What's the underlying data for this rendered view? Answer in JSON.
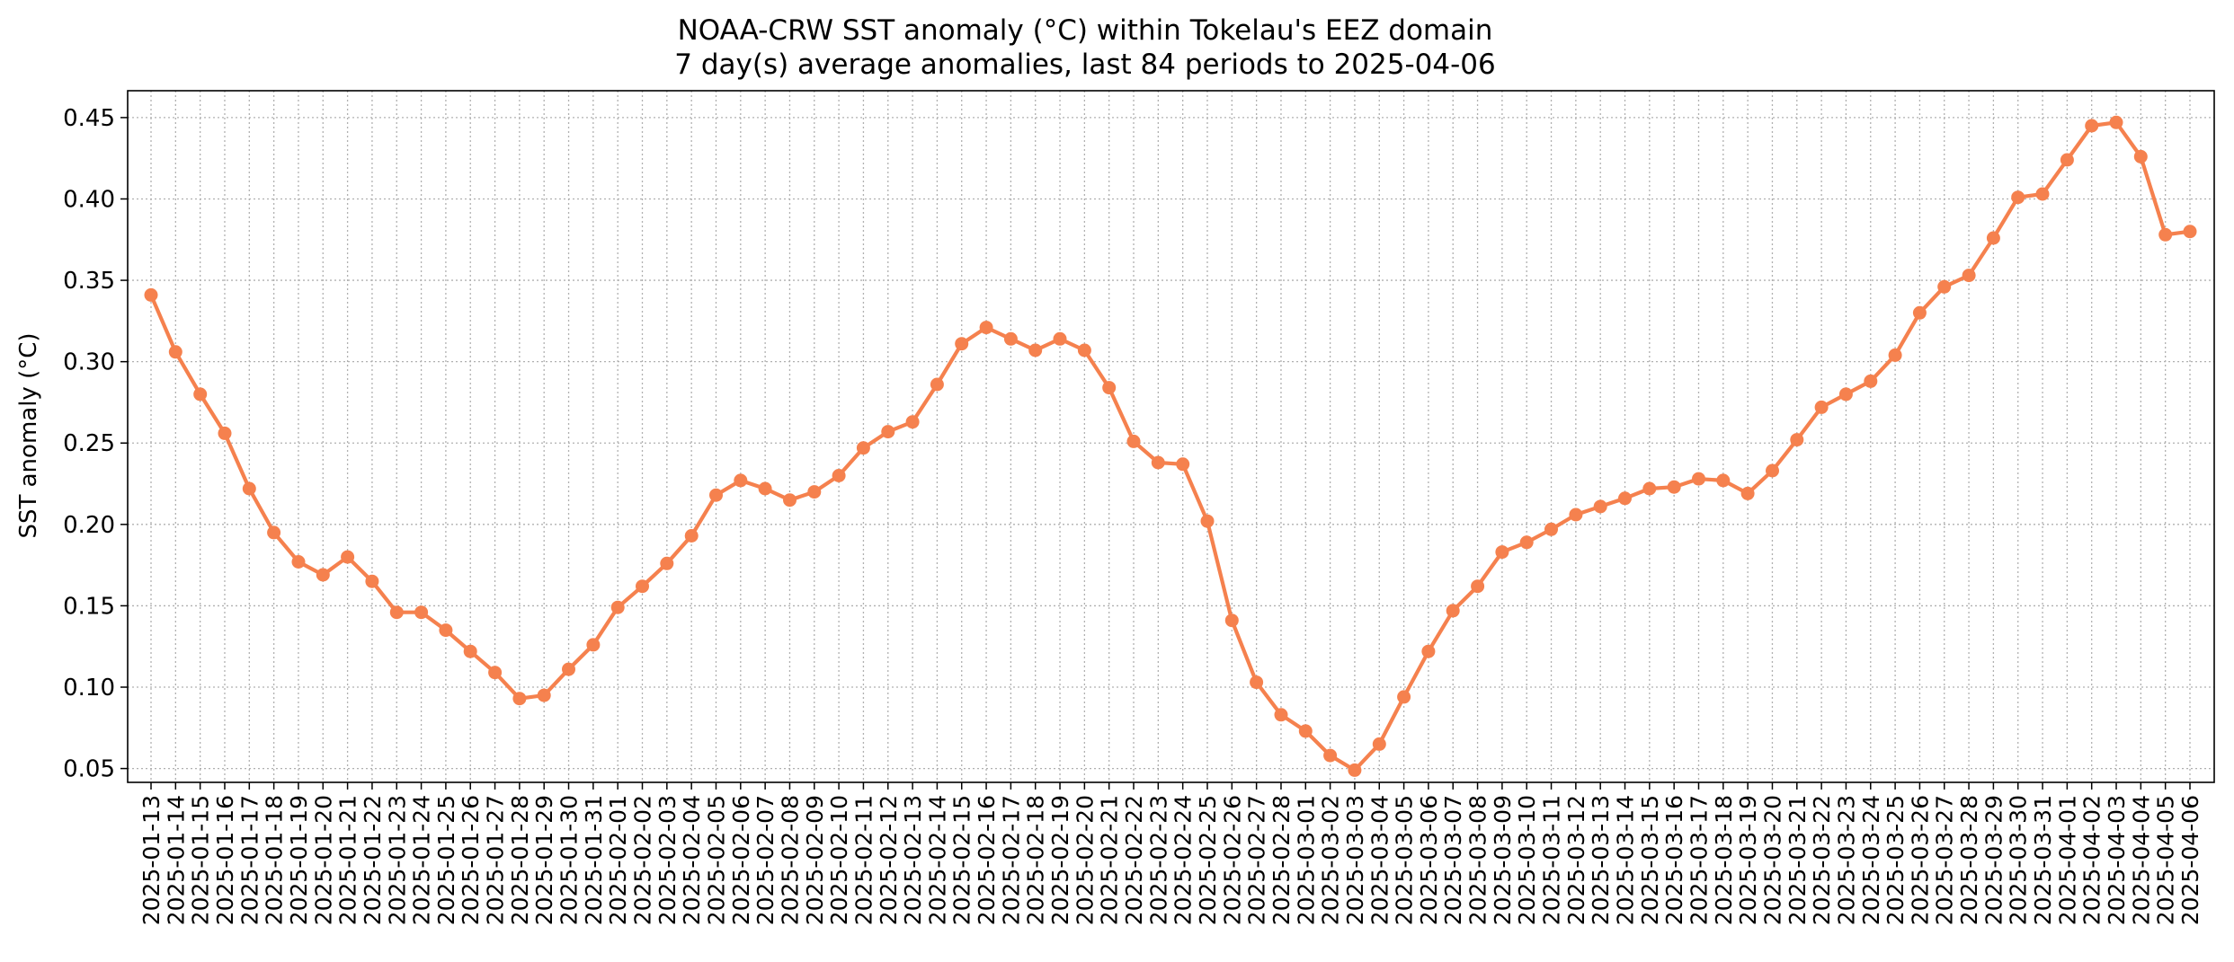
{
  "chart_data": {
    "type": "line",
    "title": "NOAA-CRW SST anomaly (°C) within Tokelau's EEZ domain",
    "subtitle": "7 day(s) average anomalies, last 84 periods to 2025-04-06",
    "xlabel": "",
    "ylabel": "SST anomaly (°C)",
    "ylim": [
      0.0415,
      0.4665
    ],
    "yticks": [
      0.05,
      0.1,
      0.15,
      0.2,
      0.25,
      0.3,
      0.35,
      0.4,
      0.45
    ],
    "grid": true,
    "legend": "none",
    "color": "#f5814e",
    "x": [
      "2025-01-13",
      "2025-01-14",
      "2025-01-15",
      "2025-01-16",
      "2025-01-17",
      "2025-01-18",
      "2025-01-19",
      "2025-01-20",
      "2025-01-21",
      "2025-01-22",
      "2025-01-23",
      "2025-01-24",
      "2025-01-25",
      "2025-01-26",
      "2025-01-27",
      "2025-01-28",
      "2025-01-29",
      "2025-01-30",
      "2025-01-31",
      "2025-02-01",
      "2025-02-02",
      "2025-02-03",
      "2025-02-04",
      "2025-02-05",
      "2025-02-06",
      "2025-02-07",
      "2025-02-08",
      "2025-02-09",
      "2025-02-10",
      "2025-02-11",
      "2025-02-12",
      "2025-02-13",
      "2025-02-14",
      "2025-02-15",
      "2025-02-16",
      "2025-02-17",
      "2025-02-18",
      "2025-02-19",
      "2025-02-20",
      "2025-02-21",
      "2025-02-22",
      "2025-02-23",
      "2025-02-24",
      "2025-02-25",
      "2025-02-26",
      "2025-02-27",
      "2025-02-28",
      "2025-03-01",
      "2025-03-02",
      "2025-03-03",
      "2025-03-04",
      "2025-03-05",
      "2025-03-06",
      "2025-03-07",
      "2025-03-08",
      "2025-03-09",
      "2025-03-10",
      "2025-03-11",
      "2025-03-12",
      "2025-03-13",
      "2025-03-14",
      "2025-03-15",
      "2025-03-16",
      "2025-03-17",
      "2025-03-18",
      "2025-03-19",
      "2025-03-20",
      "2025-03-21",
      "2025-03-22",
      "2025-03-23",
      "2025-03-24",
      "2025-03-25",
      "2025-03-26",
      "2025-03-27",
      "2025-03-28",
      "2025-03-29",
      "2025-03-30",
      "2025-03-31",
      "2025-04-01",
      "2025-04-02",
      "2025-04-03",
      "2025-04-04",
      "2025-04-05",
      "2025-04-06"
    ],
    "series": [
      {
        "values": [
          0.341,
          0.306,
          0.28,
          0.256,
          0.222,
          0.195,
          0.177,
          0.169,
          0.18,
          0.165,
          0.146,
          0.146,
          0.135,
          0.122,
          0.109,
          0.093,
          0.095,
          0.111,
          0.126,
          0.149,
          0.162,
          0.176,
          0.193,
          0.218,
          0.227,
          0.222,
          0.215,
          0.22,
          0.23,
          0.247,
          0.257,
          0.263,
          0.286,
          0.311,
          0.321,
          0.314,
          0.307,
          0.314,
          0.307,
          0.284,
          0.251,
          0.238,
          0.237,
          0.202,
          0.141,
          0.103,
          0.083,
          0.073,
          0.058,
          0.049,
          0.065,
          0.094,
          0.122,
          0.147,
          0.162,
          0.183,
          0.189,
          0.197,
          0.206,
          0.211,
          0.216,
          0.222,
          0.223,
          0.228,
          0.227,
          0.219,
          0.233,
          0.252,
          0.272,
          0.28,
          0.288,
          0.304,
          0.33,
          0.346,
          0.353,
          0.376,
          0.401,
          0.403,
          0.424,
          0.445,
          0.447,
          0.426,
          0.378,
          0.38
        ]
      }
    ]
  }
}
